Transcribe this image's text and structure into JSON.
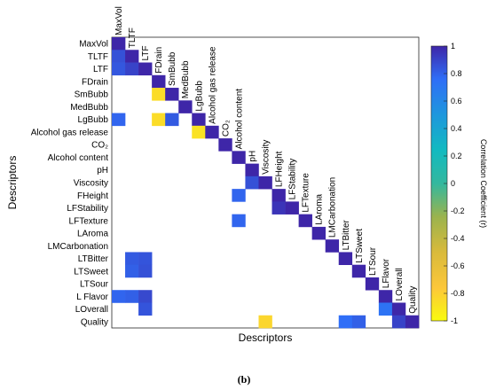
{
  "caption": "(b)",
  "chart_data": {
    "type": "heatmap",
    "xlabel": "Descriptors",
    "ylabel": "Descriptors",
    "descriptors": [
      "MaxVol",
      "TLTF",
      "LTF",
      "FDrain",
      "SmBubb",
      "MedBubb",
      "LgBubb",
      "Alcohol gas release",
      "CO₂",
      "Alcohol content",
      "pH",
      "Viscosity",
      "FHeight",
      "LFStability",
      "LFTexture",
      "LAroma",
      "LMCarbonation",
      "LTBitter",
      "LTSweet",
      "LTSour",
      "L Flavor",
      "LOverall",
      "Quality"
    ],
    "y_labels": [
      "MaxVol",
      "TLTF",
      "LTF",
      "FDrain",
      "SmBubb",
      "MedBubb",
      "LgBubb",
      "Alcohol gas release",
      "CO₂",
      "Alcohol content",
      "pH",
      "Viscosity",
      "FHeight",
      "LFStability",
      "LFTexture",
      "LAroma",
      "LMCarbonation",
      "LTBitter",
      "LTSweet",
      "LTSour",
      "L Flavor",
      "LOverall",
      "Quality"
    ],
    "x_labels": [
      "MaxVol",
      "TLTF",
      "LTF",
      "FDrain",
      "SmBubb",
      "MedBubb",
      "LgBubb",
      "Alcohol gas release",
      "CO₂",
      "Alcohol content",
      "pH",
      "Viscosity",
      "LFHeight",
      "LFStability",
      "LFTexture",
      "LAroma",
      "LMCarbonation",
      "LTBitter",
      "LTSweet",
      "LTSour",
      "LFlavor",
      "LOverall",
      "Quality"
    ],
    "colorbar": {
      "label": "Correlation Coefficient (r)",
      "range": [
        -1,
        1
      ],
      "ticks": [
        "1",
        "0.8",
        "0.6",
        "0.4",
        "0.2",
        "0",
        "-0.2",
        "-0.4",
        "-0.6",
        "-0.8",
        "-1"
      ]
    },
    "cells": [
      [
        0,
        0,
        1.0
      ],
      [
        1,
        0,
        0.85
      ],
      [
        1,
        1,
        1.0
      ],
      [
        2,
        0,
        0.83
      ],
      [
        2,
        1,
        0.9
      ],
      [
        2,
        2,
        1.0
      ],
      [
        3,
        3,
        1.0
      ],
      [
        4,
        3,
        -0.85
      ],
      [
        4,
        4,
        1.0
      ],
      [
        5,
        5,
        1.0
      ],
      [
        6,
        0,
        0.78
      ],
      [
        6,
        3,
        -0.85
      ],
      [
        6,
        4,
        0.82
      ],
      [
        6,
        6,
        1.0
      ],
      [
        7,
        6,
        -0.88
      ],
      [
        7,
        7,
        1.0
      ],
      [
        8,
        8,
        1.0
      ],
      [
        9,
        9,
        1.0
      ],
      [
        10,
        10,
        1.0
      ],
      [
        11,
        10,
        0.85
      ],
      [
        11,
        11,
        1.0
      ],
      [
        12,
        9,
        0.78
      ],
      [
        12,
        12,
        1.0
      ],
      [
        13,
        12,
        0.95
      ],
      [
        13,
        13,
        1.0
      ],
      [
        14,
        9,
        0.78
      ],
      [
        14,
        14,
        1.0
      ],
      [
        15,
        15,
        1.0
      ],
      [
        16,
        16,
        1.0
      ],
      [
        17,
        1,
        0.82
      ],
      [
        17,
        2,
        0.84
      ],
      [
        17,
        17,
        1.0
      ],
      [
        18,
        1,
        0.8
      ],
      [
        18,
        2,
        0.85
      ],
      [
        18,
        18,
        1.0
      ],
      [
        19,
        19,
        1.0
      ],
      [
        20,
        0,
        0.78
      ],
      [
        20,
        1,
        0.8
      ],
      [
        20,
        2,
        0.88
      ],
      [
        20,
        20,
        1.0
      ],
      [
        21,
        2,
        0.84
      ],
      [
        21,
        20,
        0.72
      ],
      [
        21,
        21,
        1.0
      ],
      [
        22,
        11,
        -0.82
      ],
      [
        22,
        17,
        0.75
      ],
      [
        22,
        18,
        0.8
      ],
      [
        22,
        21,
        0.9
      ],
      [
        22,
        22,
        1.0
      ]
    ]
  }
}
